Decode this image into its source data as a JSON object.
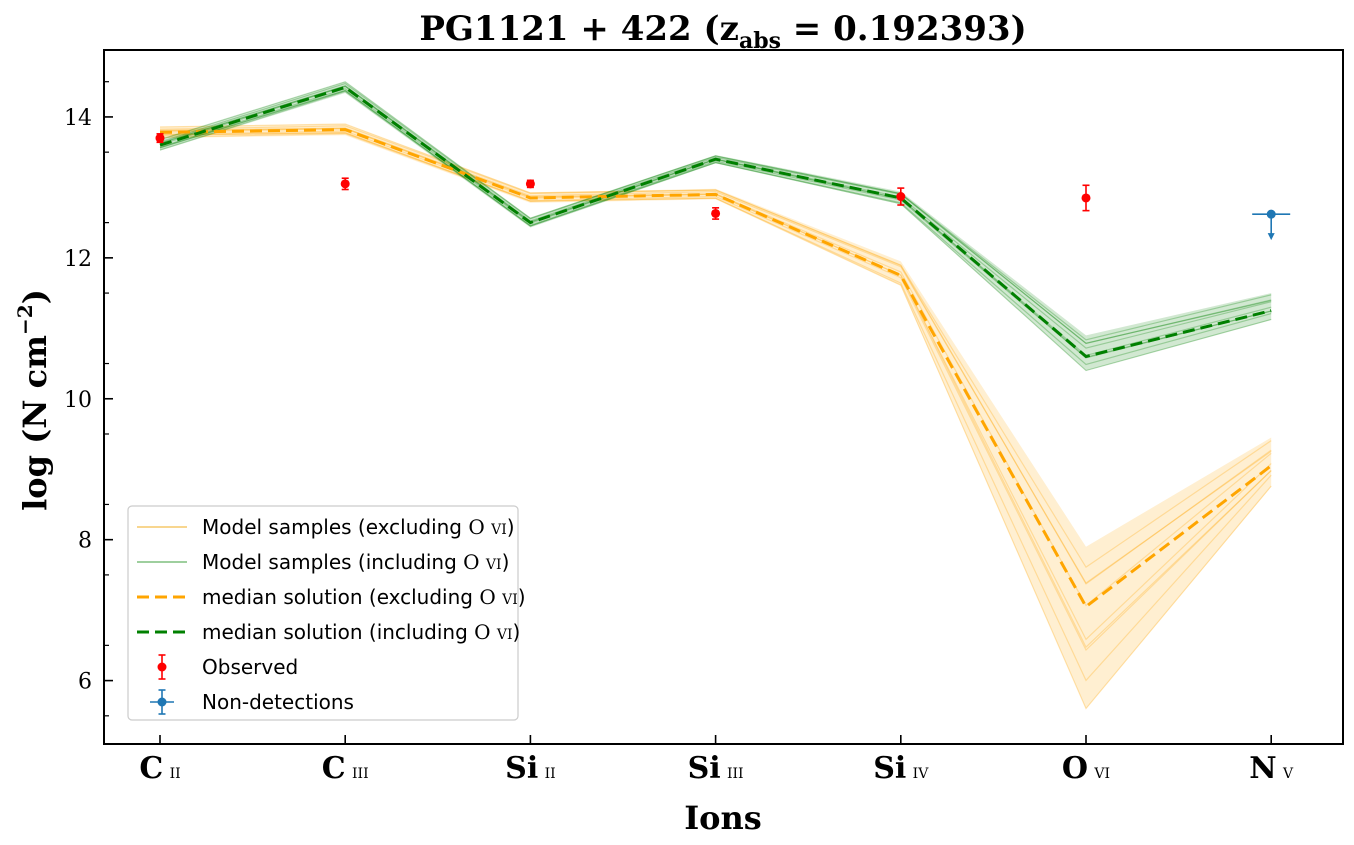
{
  "chart_data": {
    "type": "line",
    "title": "PG1121 + 422 (z_abs = 0.192393)",
    "title_parts": {
      "main": "PG1121 + 422 (z",
      "sub": "abs",
      "rest": " = 0.192393)"
    },
    "xlabel": "Ions",
    "ylabel": "log (N cm⁻²)",
    "ylabel_parts": {
      "main": "log (N cm",
      "sup": "−2",
      "close": ")"
    },
    "categories": [
      "C II",
      "C III",
      "Si II",
      "Si III",
      "Si IV",
      "O VI",
      "N V"
    ],
    "category_labels": [
      {
        "elem": "C",
        "ion": "ii"
      },
      {
        "elem": "C",
        "ion": "iii"
      },
      {
        "elem": "Si",
        "ion": "ii"
      },
      {
        "elem": "Si",
        "ion": "iii"
      },
      {
        "elem": "Si",
        "ion": "iv"
      },
      {
        "elem": "O",
        "ion": "vi"
      },
      {
        "elem": "N",
        "ion": "v"
      }
    ],
    "ylim": [
      5.1,
      14.95
    ],
    "yticks": [
      6,
      8,
      10,
      12,
      14
    ],
    "grid": false,
    "legend_position": "lower-left",
    "series": [
      {
        "name": "median solution (excluding O vi)",
        "style": "dashed",
        "color": "#ffa500",
        "values": [
          13.78,
          13.82,
          12.85,
          12.9,
          11.75,
          7.05,
          9.05
        ]
      },
      {
        "name": "median solution (including O vi)",
        "style": "dashed",
        "color": "#008000",
        "values": [
          13.6,
          14.42,
          12.5,
          13.4,
          12.85,
          10.6,
          11.25
        ]
      }
    ],
    "sample_bands": [
      {
        "name": "Model samples (excluding O vi)",
        "color": "#ffa500",
        "low": [
          13.7,
          13.74,
          12.78,
          12.83,
          11.6,
          5.6,
          8.75
        ],
        "high": [
          13.86,
          13.9,
          12.93,
          12.98,
          11.95,
          7.9,
          9.45
        ]
      },
      {
        "name": "Model samples (including O vi)",
        "color": "#008000",
        "low": [
          13.52,
          14.34,
          12.43,
          13.34,
          12.76,
          10.4,
          11.12
        ],
        "high": [
          13.68,
          14.5,
          12.57,
          13.46,
          12.94,
          10.9,
          11.5
        ]
      }
    ],
    "observed": {
      "name": "Observed",
      "color": "#ff0000",
      "points": [
        {
          "category": "C II",
          "value": 13.7,
          "err": 0.06
        },
        {
          "category": "C III",
          "value": 13.05,
          "err": 0.08
        },
        {
          "category": "Si II",
          "value": 13.05,
          "err": 0.05
        },
        {
          "category": "Si III",
          "value": 12.63,
          "err": 0.08
        },
        {
          "category": "Si IV",
          "value": 12.87,
          "err": 0.12
        },
        {
          "category": "O VI",
          "value": 12.85,
          "err": 0.18
        }
      ]
    },
    "non_detections": {
      "name": "Non-detections",
      "color": "#1f77b4",
      "points": [
        {
          "category": "N V",
          "value": 12.62,
          "upper_limit": true
        }
      ]
    },
    "legend": [
      {
        "label": "Model samples (excluding ",
        "label_elem": "O",
        "label_ion": "vi",
        "label_end": ")",
        "kind": "thin-line",
        "color": "#f5c86a"
      },
      {
        "label": "Model samples (including ",
        "label_elem": "O",
        "label_ion": "vi",
        "label_end": ")",
        "kind": "thin-line",
        "color": "#7fbf7f"
      },
      {
        "label": "median solution (excluding ",
        "label_elem": "O",
        "label_ion": "vi",
        "label_end": ")",
        "kind": "dashed-line",
        "color": "#ffa500"
      },
      {
        "label": "median solution (including ",
        "label_elem": "O",
        "label_ion": "vi",
        "label_end": ")",
        "kind": "dashed-line",
        "color": "#008000"
      },
      {
        "label": "Observed",
        "label_elem": "",
        "label_ion": "",
        "label_end": "",
        "kind": "errorbar",
        "color": "#ff0000"
      },
      {
        "label": "Non-detections",
        "label_elem": "",
        "label_ion": "",
        "label_end": "",
        "kind": "xerrorbar",
        "color": "#1f77b4"
      }
    ]
  }
}
